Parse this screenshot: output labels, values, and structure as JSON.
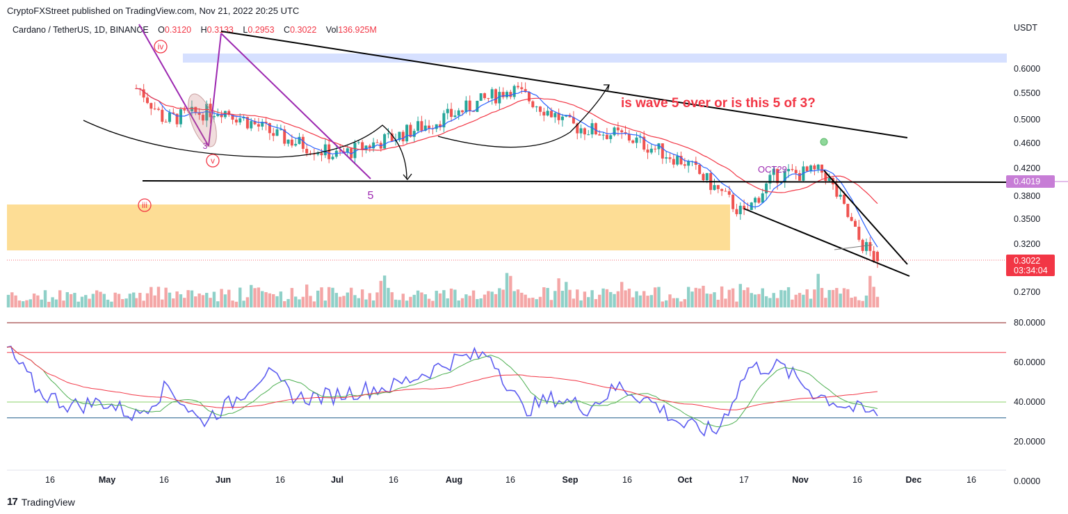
{
  "header": {
    "published": "CryptoFXStreet published on TradingView.com, Nov 21, 2022 20:25 UTC"
  },
  "legend": {
    "symbol": "Cardano / TetherUS, 1D, BINANCE",
    "open_label": "O",
    "open": "0.3120",
    "high_label": "H",
    "high": "0.3133",
    "low_label": "L",
    "low": "0.2953",
    "close_label": "C",
    "close": "0.3022",
    "vol_label": "Vol",
    "vol": "136.925M"
  },
  "currency": "USDT",
  "price_axis": [
    "0.6000",
    "0.5500",
    "0.5000",
    "0.4600",
    "0.4200",
    "0.3800",
    "0.3500",
    "0.3200",
    "0.2700"
  ],
  "rsi_axis": [
    "80.0000",
    "60.0000",
    "40.0000",
    "20.0000",
    "0.0000"
  ],
  "price_tags": {
    "level": "0.4019",
    "last": "0.3022",
    "countdown": "03:34:04"
  },
  "time_axis": [
    "16",
    "May",
    "16",
    "Jun",
    "16",
    "Jul",
    "16",
    "Aug",
    "16",
    "Sep",
    "16",
    "Oct",
    "17",
    "Nov",
    "16",
    "Dec",
    "16"
  ],
  "annotations": {
    "question": "is wave 5 over or is this 5 of 3?",
    "wave_iv": "iv",
    "wave_v": "v",
    "wave_iii": "iii",
    "wave_5": "5",
    "wave_3": "3",
    "oct29": "OCT29"
  },
  "colors": {
    "up": "#26a69a",
    "down": "#ef5350",
    "ma_fast": "#2962ff",
    "ma_slow": "#f23645",
    "rsi": "#5b5bf0",
    "rsi_ma": "#4caf50",
    "wave": "#9c27b0",
    "zone_blue": "#d6e0ff",
    "zone_yellow": "#fddb8f"
  },
  "chart_data": [
    {
      "type": "candlestick",
      "title": "Cardano / TetherUS, 1D, BINANCE",
      "ylabel": "USDT",
      "x": [
        "May 10",
        "May 16",
        "Jun 1",
        "Jun 16",
        "Jul 1",
        "Jul 16",
        "Aug 1",
        "Aug 14",
        "Sep 1",
        "Sep 16",
        "Oct 1",
        "Oct 17",
        "Oct 29",
        "Nov 5",
        "Nov 16",
        "Nov 21"
      ],
      "close": [
        0.56,
        0.5,
        0.52,
        0.47,
        0.44,
        0.47,
        0.51,
        0.56,
        0.49,
        0.47,
        0.43,
        0.355,
        0.41,
        0.415,
        0.325,
        0.3022
      ],
      "ylim": [
        0.26,
        0.68
      ],
      "last": {
        "open": 0.312,
        "high": 0.3133,
        "low": 0.2953,
        "close": 0.3022,
        "volume": "136.925M"
      },
      "levels": [
        0.4019
      ],
      "zones": [
        [
          0.615,
          0.63
        ],
        [
          0.325,
          0.368
        ]
      ]
    },
    {
      "type": "line",
      "title": "RSI",
      "series": [
        {
          "values": [
            67,
            45,
            38,
            40,
            33,
            48,
            30,
            40,
            55,
            42,
            43,
            46,
            48,
            55,
            62,
            64,
            36,
            42,
            37,
            48,
            40,
            28,
            25,
            57,
            58,
            45,
            38,
            33
          ]
        }
      ],
      "ylim": [
        0,
        80
      ],
      "levels": [
        80,
        65,
        40,
        32
      ]
    }
  ]
}
